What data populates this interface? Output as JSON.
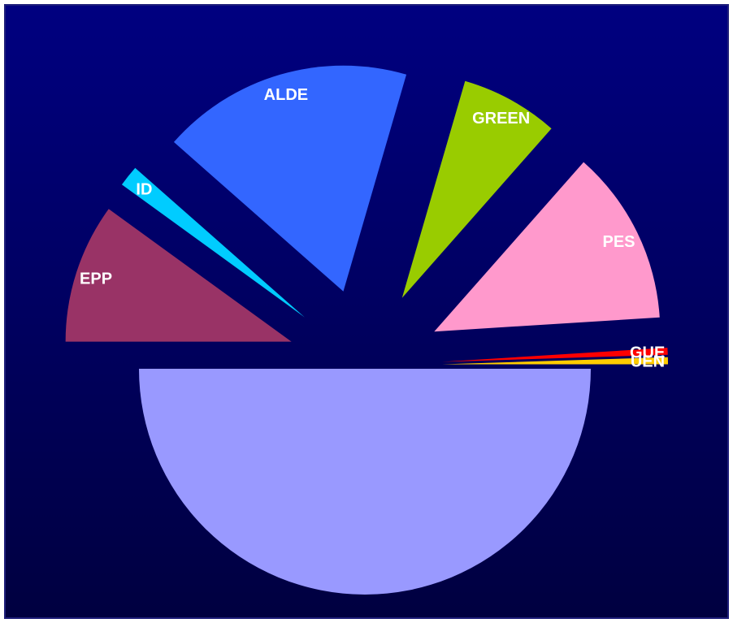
{
  "chart_data": {
    "type": "pie",
    "semicircle_slice": true,
    "slices": [
      {
        "label": "",
        "value": 50.0,
        "color": "#9999FF"
      },
      {
        "label": "EPP",
        "value": 10.0,
        "color": "#993366"
      },
      {
        "label": "ID",
        "value": 1.5,
        "color": "#00CCFF"
      },
      {
        "label": "ALDE",
        "value": 18.0,
        "color": "#3366FF"
      },
      {
        "label": "GREEN",
        "value": 7.0,
        "color": "#99CC00"
      },
      {
        "label": "PES",
        "value": 12.5,
        "color": "#FF99CC"
      },
      {
        "label": "GUE",
        "value": 0.5,
        "color": "#FF0000"
      },
      {
        "label": "UEN",
        "value": 0.5,
        "color": "#FFCC00"
      }
    ],
    "exploded": true,
    "background": {
      "top": "#000080",
      "bottom": "#000040"
    },
    "border_color": "#1F1F7A"
  }
}
